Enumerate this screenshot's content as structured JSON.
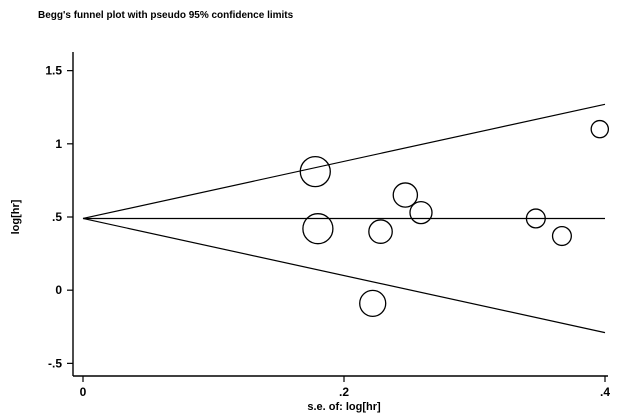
{
  "chart_data": {
    "type": "scatter",
    "title": "Begg's funnel plot with pseudo 95% confidence limits",
    "xlabel": "s.e. of: log[hr]",
    "ylabel": "log[hr]",
    "xlim": [
      0,
      0.4
    ],
    "ylim": [
      -0.6,
      1.6
    ],
    "x_ticks": [
      {
        "value": 0,
        "label": "0"
      },
      {
        "value": 0.2,
        "label": ".2"
      },
      {
        "value": 0.4,
        "label": ".4"
      }
    ],
    "y_ticks": [
      {
        "value": 1.5,
        "label": "1.5"
      },
      {
        "value": 1,
        "label": "1"
      },
      {
        "value": 0.5,
        "label": ".5"
      },
      {
        "value": 0,
        "label": "0"
      },
      {
        "value": -0.5,
        "label": "-.5"
      }
    ],
    "pooled_estimate": 0.49,
    "confidence_lines": {
      "upper": [
        [
          0,
          0.49
        ],
        [
          0.4,
          1.27
        ]
      ],
      "lower": [
        [
          0,
          0.49
        ],
        [
          0.4,
          -0.29
        ]
      ]
    },
    "points": [
      {
        "se": 0.178,
        "loghr": 0.81,
        "weight": 1.0
      },
      {
        "se": 0.18,
        "loghr": 0.42,
        "weight": 1.0
      },
      {
        "se": 0.222,
        "loghr": -0.09,
        "weight": 0.8
      },
      {
        "se": 0.228,
        "loghr": 0.4,
        "weight": 0.67
      },
      {
        "se": 0.247,
        "loghr": 0.65,
        "weight": 0.71
      },
      {
        "se": 0.259,
        "loghr": 0.53,
        "weight": 0.6
      },
      {
        "se": 0.347,
        "loghr": 0.49,
        "weight": 0.44
      },
      {
        "se": 0.367,
        "loghr": 0.37,
        "weight": 0.44
      },
      {
        "se": 0.396,
        "loghr": 1.1,
        "weight": 0.36
      }
    ]
  }
}
